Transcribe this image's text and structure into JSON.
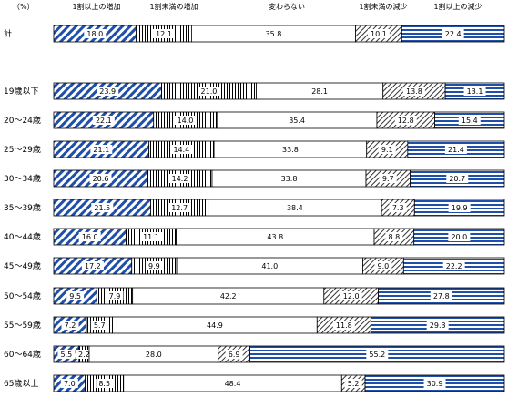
{
  "chart_data": {
    "type": "bar",
    "orientation": "horizontal",
    "stacked": true,
    "percent_stacked": true,
    "unit_label": "（%）",
    "title": "",
    "xlabel": "",
    "ylabel": "",
    "xlim": [
      0,
      100
    ],
    "grid": false,
    "legend": "column headers above bars",
    "categories": [
      "計",
      "19歳以下",
      "20～24歳",
      "25～29歳",
      "30～34歳",
      "35～39歳",
      "40～44歳",
      "45～49歳",
      "50～54歳",
      "55～59歳",
      "60～64歳",
      "65歳以上"
    ],
    "series": [
      {
        "name": "1割以上の増加",
        "color": "#1f4fa8",
        "pattern": "diagonal-stripes",
        "values": [
          18.0,
          23.9,
          22.1,
          21.1,
          20.6,
          21.5,
          16.0,
          17.2,
          9.5,
          7.2,
          5.5,
          7.0
        ]
      },
      {
        "name": "1割未満の増加",
        "color": "#000000",
        "pattern": "vertical-lines",
        "values": [
          12.1,
          21.0,
          14.0,
          14.4,
          14.2,
          12.7,
          11.1,
          9.9,
          7.9,
          5.7,
          2.2,
          8.5
        ]
      },
      {
        "name": "変わらない",
        "color": "#ffffff",
        "pattern": "none",
        "values": [
          35.8,
          28.1,
          35.4,
          33.8,
          33.8,
          38.4,
          43.8,
          41.0,
          42.2,
          44.9,
          28.0,
          48.4
        ]
      },
      {
        "name": "1割未満の減少",
        "color": "#000000",
        "pattern": "thin-diagonal-hatch",
        "values": [
          10.1,
          13.8,
          12.8,
          9.1,
          9.7,
          7.3,
          8.8,
          9.0,
          12.0,
          11.8,
          6.9,
          5.2
        ]
      },
      {
        "name": "1割以上の減少",
        "color": "#1f4fa8",
        "pattern": "horizontal-stripes",
        "values": [
          22.4,
          13.1,
          15.4,
          21.4,
          20.7,
          19.9,
          20.0,
          22.2,
          27.8,
          29.3,
          55.2,
          30.9
        ]
      }
    ]
  }
}
